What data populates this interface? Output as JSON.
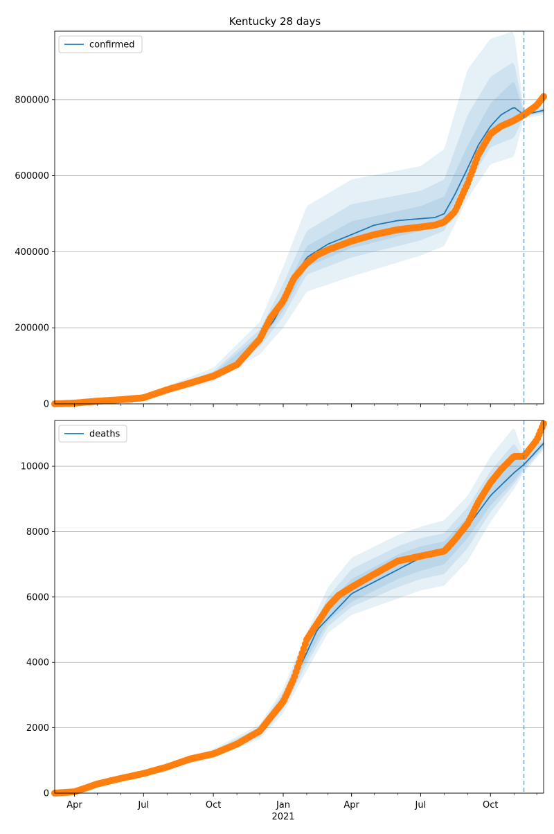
{
  "chart_data": {
    "title": "Kentucky 28 days",
    "type": "line",
    "x_axis": {
      "ticks": [
        "Apr",
        "Jul",
        "Oct",
        "Jan",
        "Apr",
        "Jul",
        "Oct"
      ],
      "year_label": "2021",
      "range": [
        "2020-03-06",
        "2021-12-10"
      ]
    },
    "forecast_start": "2021-11-14",
    "colors": {
      "model": "#1f77b4",
      "observed": "#ff7f0e",
      "band": "#1f77b4"
    },
    "panels": [
      {
        "legend": "confirmed",
        "legend_position": "top-left",
        "ylim": [
          0,
          980000
        ],
        "yticks": [
          "0",
          "200000",
          "400000",
          "600000",
          "800000"
        ],
        "grid": true,
        "model_series": {
          "name": "confirmed",
          "x": [
            "2020-03-06",
            "2020-05-01",
            "2020-07-01",
            "2020-08-15",
            "2020-10-01",
            "2020-11-01",
            "2020-12-01",
            "2020-12-20",
            "2021-01-01",
            "2021-01-15",
            "2021-02-01",
            "2021-03-01",
            "2021-04-01",
            "2021-05-01",
            "2021-06-01",
            "2021-07-01",
            "2021-07-20",
            "2021-08-01",
            "2021-08-15",
            "2021-09-01",
            "2021-09-15",
            "2021-10-01",
            "2021-10-15",
            "2021-11-01",
            "2021-11-14",
            "2021-12-10"
          ],
          "y": [
            0,
            8000,
            16000,
            45000,
            75000,
            110000,
            170000,
            220000,
            265000,
            330000,
            385000,
            420000,
            445000,
            470000,
            482000,
            487000,
            490000,
            500000,
            550000,
            620000,
            680000,
            730000,
            760000,
            780000,
            760000,
            772000
          ]
        },
        "bands": {
          "x": [
            "2020-03-06",
            "2020-07-01",
            "2020-10-01",
            "2020-12-01",
            "2021-01-01",
            "2021-02-01",
            "2021-04-01",
            "2021-07-01",
            "2021-08-01",
            "2021-09-01",
            "2021-10-01",
            "2021-11-01",
            "2021-11-14",
            "2021-12-10"
          ],
          "center": [
            0,
            16000,
            75000,
            170000,
            265000,
            385000,
            445000,
            487000,
            500000,
            620000,
            730000,
            780000,
            760000,
            772000
          ],
          "upper_outer": [
            0,
            22000,
            95000,
            215000,
            360000,
            520000,
            590000,
            625000,
            670000,
            880000,
            960000,
            980000,
            775000,
            785000
          ],
          "lower_outer": [
            0,
            10000,
            58000,
            130000,
            200000,
            295000,
            335000,
            390000,
            415000,
            540000,
            630000,
            650000,
            750000,
            760000
          ],
          "upper_mid": [
            0,
            19000,
            85000,
            195000,
            315000,
            455000,
            525000,
            560000,
            590000,
            760000,
            860000,
            900000,
            768000,
            778000
          ],
          "lower_mid": [
            0,
            13000,
            65000,
            150000,
            230000,
            340000,
            385000,
            430000,
            455000,
            575000,
            675000,
            700000,
            755000,
            765000
          ],
          "upper_inner": [
            0,
            17500,
            80000,
            182000,
            290000,
            415000,
            480000,
            520000,
            545000,
            680000,
            790000,
            850000,
            764000,
            775000
          ],
          "lower_inner": [
            0,
            14500,
            70000,
            160000,
            245000,
            360000,
            410000,
            455000,
            475000,
            600000,
            705000,
            740000,
            757000,
            768000
          ]
        },
        "observed_series": {
          "x": [
            "2020-03-06",
            "2020-04-01",
            "2020-05-01",
            "2020-06-01",
            "2020-07-01",
            "2020-08-01",
            "2020-09-01",
            "2020-10-01",
            "2020-11-01",
            "2020-12-01",
            "2020-12-15",
            "2021-01-01",
            "2021-01-15",
            "2021-02-01",
            "2021-02-15",
            "2021-03-01",
            "2021-04-01",
            "2021-05-01",
            "2021-06-01",
            "2021-07-01",
            "2021-07-20",
            "2021-08-01",
            "2021-08-15",
            "2021-09-01",
            "2021-09-15",
            "2021-10-01",
            "2021-10-15",
            "2021-11-01",
            "2021-11-14",
            "2021-12-01",
            "2021-12-10"
          ],
          "y": [
            0,
            2000,
            7000,
            11000,
            16000,
            37000,
            55000,
            73000,
            103000,
            170000,
            225000,
            270000,
            330000,
            370000,
            392000,
            405000,
            428000,
            445000,
            458000,
            465000,
            470000,
            478000,
            505000,
            580000,
            655000,
            710000,
            730000,
            745000,
            760000,
            785000,
            808000
          ]
        }
      },
      {
        "legend": "deaths",
        "legend_position": "top-left",
        "ylim": [
          0,
          11400
        ],
        "yticks": [
          "0",
          "2000",
          "4000",
          "6000",
          "8000",
          "10000"
        ],
        "grid": true,
        "model_series": {
          "name": "deaths",
          "x": [
            "2020-03-06",
            "2020-04-01",
            "2020-07-01",
            "2020-10-01",
            "2020-12-01",
            "2021-01-01",
            "2021-02-01",
            "2021-02-15",
            "2021-04-01",
            "2021-07-01",
            "2021-08-01",
            "2021-09-01",
            "2021-10-01",
            "2021-11-01",
            "2021-11-14",
            "2021-12-10"
          ],
          "y": [
            0,
            50,
            600,
            1200,
            1850,
            2800,
            4300,
            5000,
            6100,
            7200,
            7400,
            8150,
            9100,
            9800,
            10050,
            10700
          ]
        },
        "bands": {
          "x": [
            "2020-03-06",
            "2020-07-01",
            "2020-10-01",
            "2020-12-01",
            "2021-01-01",
            "2021-02-01",
            "2021-03-01",
            "2021-04-01",
            "2021-06-01",
            "2021-07-01",
            "2021-08-01",
            "2021-09-01",
            "2021-10-01",
            "2021-11-01",
            "2021-11-14",
            "2021-12-10"
          ],
          "center": [
            0,
            600,
            1200,
            1850,
            2800,
            4300,
            5500,
            6100,
            6950,
            7200,
            7400,
            8150,
            9100,
            9800,
            10050,
            10700
          ],
          "upper_outer": [
            0,
            660,
            1350,
            2100,
            3200,
            4900,
            6300,
            7200,
            7900,
            8150,
            8350,
            9100,
            10300,
            11200,
            10350,
            10900
          ],
          "lower_outer": [
            0,
            540,
            1080,
            1650,
            2450,
            3750,
            4900,
            5450,
            5950,
            6200,
            6350,
            7100,
            8300,
            9300,
            9800,
            10500
          ],
          "upper_mid": [
            0,
            640,
            1300,
            2020,
            3080,
            4700,
            6000,
            6850,
            7550,
            7800,
            7950,
            8750,
            9850,
            10700,
            10250,
            10830
          ],
          "lower_mid": [
            0,
            560,
            1120,
            1720,
            2580,
            3950,
            5100,
            5700,
            6300,
            6550,
            6700,
            7500,
            8600,
            9450,
            9870,
            10560
          ],
          "upper_inner": [
            0,
            620,
            1260,
            1950,
            2960,
            4520,
            5800,
            6550,
            7300,
            7550,
            7700,
            8450,
            9500,
            10300,
            10150,
            10770
          ],
          "lower_inner": [
            0,
            580,
            1150,
            1780,
            2680,
            4100,
            5250,
            5850,
            6550,
            6800,
            7000,
            7800,
            8800,
            9550,
            9950,
            10620
          ]
        },
        "observed_series": {
          "x": [
            "2020-03-06",
            "2020-04-01",
            "2020-04-15",
            "2020-05-01",
            "2020-06-01",
            "2020-07-01",
            "2020-08-01",
            "2020-09-01",
            "2020-10-01",
            "2020-11-01",
            "2020-12-01",
            "2021-01-01",
            "2021-01-15",
            "2021-02-01",
            "2021-02-15",
            "2021-03-01",
            "2021-03-15",
            "2021-04-01",
            "2021-05-01",
            "2021-06-01",
            "2021-07-01",
            "2021-08-01",
            "2021-08-15",
            "2021-09-01",
            "2021-09-15",
            "2021-10-01",
            "2021-10-15",
            "2021-11-01",
            "2021-11-14",
            "2021-12-01",
            "2021-12-10"
          ],
          "y": [
            0,
            40,
            150,
            280,
            450,
            600,
            800,
            1050,
            1200,
            1500,
            1900,
            2800,
            3500,
            4700,
            5200,
            5700,
            6050,
            6300,
            6700,
            7100,
            7250,
            7400,
            7750,
            8250,
            8900,
            9500,
            9900,
            10300,
            10300,
            10800,
            11300
          ]
        }
      }
    ]
  }
}
